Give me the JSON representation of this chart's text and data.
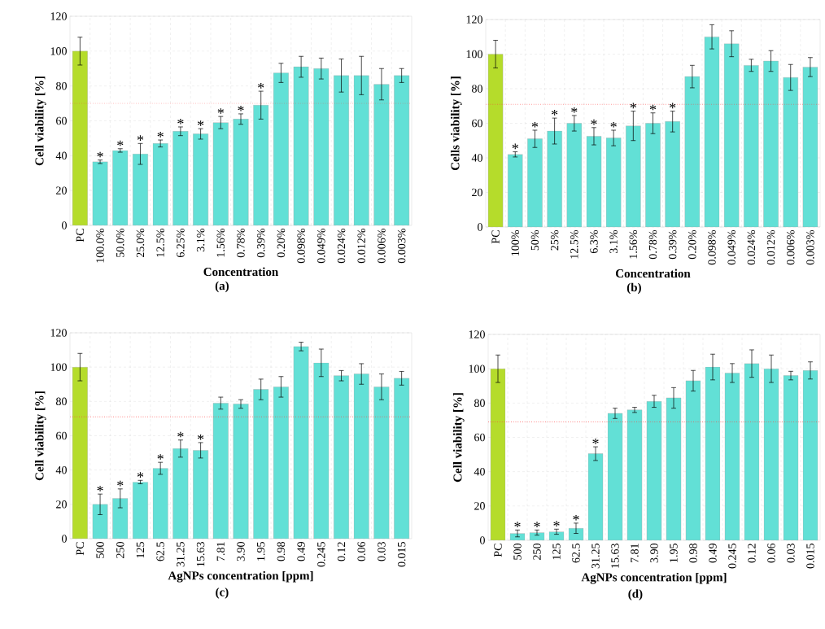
{
  "chart_data": [
    {
      "type": "bar",
      "xlabel": "Concentration",
      "ylabel": "Cell viability [%]",
      "categories": [
        "PC",
        "100.0%",
        "50.0%",
        "25.0%",
        "12.5%",
        "6.25%",
        "3.1%",
        "1.56%",
        "0.78%",
        "0.39%",
        "0.20%",
        "0.098%",
        "0.049%",
        "0.024%",
        "0.012%",
        "0.006%",
        "0.003%"
      ],
      "values": [
        100,
        36.5,
        43,
        41,
        47,
        54,
        52.5,
        59,
        61,
        69,
        87.5,
        91,
        90,
        86,
        86,
        81,
        86
      ],
      "errors": [
        8,
        1,
        1,
        6,
        2,
        2.5,
        3,
        3.5,
        3,
        8,
        5.5,
        6,
        6,
        9.5,
        11,
        9,
        4
      ],
      "colors": [
        "#b5dc2b",
        "#62e0d6",
        "#62e0d6",
        "#62e0d6",
        "#62e0d6",
        "#62e0d6",
        "#62e0d6",
        "#62e0d6",
        "#62e0d6",
        "#62e0d6",
        "#62e0d6",
        "#62e0d6",
        "#62e0d6",
        "#62e0d6",
        "#62e0d6",
        "#62e0d6",
        "#62e0d6"
      ],
      "ylim": [
        0,
        120
      ],
      "yticks": [
        0,
        20,
        40,
        60,
        80,
        100,
        120
      ],
      "grid": true,
      "ref_lines": [
        {
          "axis": "y",
          "value": 70,
          "color": "#ff4040",
          "line_style": "dotted"
        }
      ],
      "value_labels": [
        null,
        "*",
        "*",
        "*",
        "*",
        "*",
        "*",
        "*",
        "*",
        "*",
        null,
        null,
        null,
        null,
        null,
        null,
        null
      ],
      "annotations": [
        "(a)"
      ]
    },
    {
      "type": "bar",
      "xlabel": "Concentration",
      "ylabel": "Cells viability [%]",
      "categories": [
        "PC",
        "100%",
        "50%",
        "25%",
        "12.5%",
        "6.3%",
        "3.1%",
        "1.56%",
        "0.78%",
        "0.39%",
        "0.20%",
        "0.098%",
        "0.049%",
        "0.024%",
        "0.012%",
        "0.006%",
        "0.003%"
      ],
      "values": [
        100,
        42,
        51,
        55.5,
        60,
        52.5,
        51.5,
        58.5,
        60,
        61,
        87,
        110,
        106,
        93.5,
        96,
        86.5,
        92.5
      ],
      "errors": [
        8,
        1.5,
        5,
        7.5,
        4.5,
        5,
        4.5,
        8.5,
        6,
        6,
        6.5,
        7,
        7.5,
        3.5,
        6,
        7.5,
        5.5
      ],
      "colors": [
        "#b5dc2b",
        "#62e0d6",
        "#62e0d6",
        "#62e0d6",
        "#62e0d6",
        "#62e0d6",
        "#62e0d6",
        "#62e0d6",
        "#62e0d6",
        "#62e0d6",
        "#62e0d6",
        "#62e0d6",
        "#62e0d6",
        "#62e0d6",
        "#62e0d6",
        "#62e0d6",
        "#62e0d6"
      ],
      "ylim": [
        0,
        120
      ],
      "yticks": [
        0,
        20,
        40,
        60,
        80,
        100,
        120
      ],
      "grid": true,
      "ref_lines": [
        {
          "axis": "y",
          "value": 71,
          "color": "#ff4040",
          "line_style": "dotted"
        }
      ],
      "value_labels": [
        null,
        "*",
        "*",
        "*",
        "*",
        "*",
        "*",
        "*",
        "*",
        "*",
        null,
        null,
        null,
        null,
        null,
        null,
        null
      ],
      "annotations": [
        "(b)"
      ]
    },
    {
      "type": "bar",
      "xlabel": "AgNPs concentration [ppm]",
      "ylabel": "Cell viability [%]",
      "categories": [
        "PC",
        "500",
        "250",
        "125",
        "62.5",
        "31.25",
        "15.63",
        "7.81",
        "3.90",
        "1.95",
        "0.98",
        "0.49",
        "0.245",
        "0.12",
        "0.06",
        "0.03",
        "0.015"
      ],
      "values": [
        100,
        20,
        23.5,
        33,
        41,
        52.5,
        51.5,
        79,
        78.5,
        87,
        88.5,
        112,
        102.5,
        95,
        96,
        88.5,
        93.5
      ],
      "errors": [
        8,
        6,
        5.5,
        1,
        3.5,
        5,
        4.5,
        3.5,
        2.5,
        6,
        6,
        2.5,
        8,
        3,
        6,
        7.5,
        4
      ],
      "colors": [
        "#b5dc2b",
        "#62e0d6",
        "#62e0d6",
        "#62e0d6",
        "#62e0d6",
        "#62e0d6",
        "#62e0d6",
        "#62e0d6",
        "#62e0d6",
        "#62e0d6",
        "#62e0d6",
        "#62e0d6",
        "#62e0d6",
        "#62e0d6",
        "#62e0d6",
        "#62e0d6",
        "#62e0d6"
      ],
      "ylim": [
        0,
        120
      ],
      "yticks": [
        0,
        20,
        40,
        60,
        80,
        100,
        120
      ],
      "grid": true,
      "ref_lines": [
        {
          "axis": "y",
          "value": 71,
          "color": "#ff4040",
          "line_style": "dotted"
        }
      ],
      "value_labels": [
        null,
        "*",
        "*",
        "*",
        "*",
        "*",
        "*",
        null,
        null,
        null,
        null,
        null,
        null,
        null,
        null,
        null,
        null
      ],
      "annotations": [
        "(c)"
      ]
    },
    {
      "type": "bar",
      "xlabel": "AgNPs concentration [ppm]",
      "ylabel": "Cell viability [%]",
      "categories": [
        "PC",
        "500",
        "250",
        "125",
        "62.5",
        "31.25",
        "15.63",
        "7.81",
        "3.90",
        "1.95",
        "0.98",
        "0.49",
        "0.245",
        "0.12",
        "0.06",
        "0.03",
        "0.015"
      ],
      "values": [
        100,
        4,
        4.5,
        5,
        7,
        50.5,
        74,
        76,
        81,
        83,
        93,
        101,
        97.5,
        103,
        100,
        96,
        99
      ],
      "errors": [
        8,
        2,
        1.5,
        1.5,
        3,
        4,
        3,
        1.5,
        3.5,
        6,
        6,
        7.5,
        5.5,
        8,
        8,
        2.5,
        5
      ],
      "colors": [
        "#b5dc2b",
        "#62e0d6",
        "#62e0d6",
        "#62e0d6",
        "#62e0d6",
        "#62e0d6",
        "#62e0d6",
        "#62e0d6",
        "#62e0d6",
        "#62e0d6",
        "#62e0d6",
        "#62e0d6",
        "#62e0d6",
        "#62e0d6",
        "#62e0d6",
        "#62e0d6",
        "#62e0d6"
      ],
      "ylim": [
        0,
        120
      ],
      "yticks": [
        0,
        20,
        40,
        60,
        80,
        100,
        120
      ],
      "grid": true,
      "ref_lines": [
        {
          "axis": "y",
          "value": 69,
          "color": "#ff4040",
          "line_style": "dotted"
        }
      ],
      "value_labels": [
        null,
        "*",
        "*",
        "*",
        "*",
        "*",
        null,
        null,
        null,
        null,
        null,
        null,
        null,
        null,
        null,
        null,
        null
      ],
      "annotations": [
        "(d)"
      ]
    }
  ]
}
